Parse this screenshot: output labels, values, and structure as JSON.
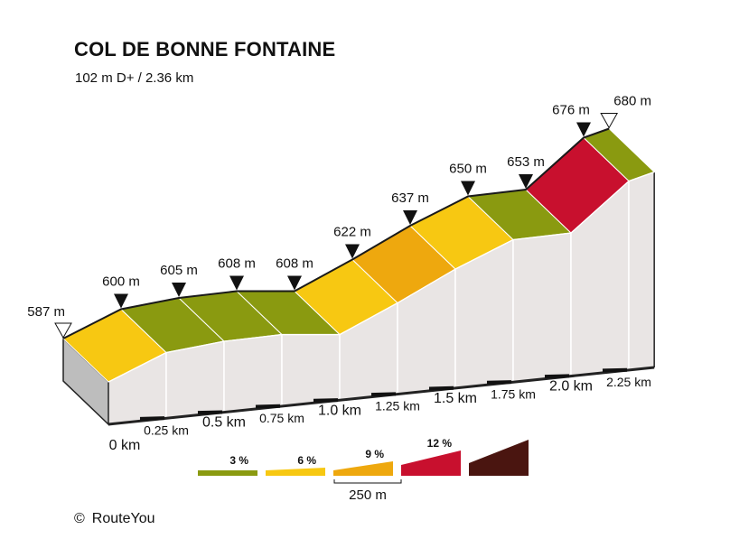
{
  "header": {
    "title": "COL DE BONNE FONTAINE",
    "subtitle": "102 m D+ / 2.36 km"
  },
  "footer": {
    "copyright_symbol": "©",
    "brand": "RouteYou"
  },
  "colors": {
    "grade_3": "#8a9a10",
    "grade_6": "#f7c812",
    "grade_9": "#eea80e",
    "grade_12": "#c8102e",
    "grade_max": "#4a1510",
    "side_fill": "#e9e5e4",
    "start_wall": "#bdbdbd",
    "baseline": "#222222"
  },
  "chart_data": {
    "type": "area",
    "title": "COL DE BONNE FONTAINE",
    "subtitle": "102 m D+ / 2.36 km",
    "xlabel": "",
    "ylabel": "",
    "x_unit": "km",
    "y_unit": "m",
    "points": [
      {
        "km": 0,
        "elevation": 587,
        "label": "587 m",
        "marker": "start"
      },
      {
        "km": 0.25,
        "elevation": 600,
        "label": "600 m",
        "marker": "point"
      },
      {
        "km": 0.5,
        "elevation": 605,
        "label": "605 m",
        "marker": "point"
      },
      {
        "km": 0.75,
        "elevation": 608,
        "label": "608 m",
        "marker": "point"
      },
      {
        "km": 1.0,
        "elevation": 608,
        "label": "608 m",
        "marker": "point"
      },
      {
        "km": 1.25,
        "elevation": 622,
        "label": "622 m",
        "marker": "point"
      },
      {
        "km": 1.5,
        "elevation": 637,
        "label": "637 m",
        "marker": "point"
      },
      {
        "km": 1.75,
        "elevation": 650,
        "label": "650 m",
        "marker": "point"
      },
      {
        "km": 2.0,
        "elevation": 653,
        "label": "653 m",
        "marker": "point"
      },
      {
        "km": 2.25,
        "elevation": 676,
        "label": "676 m",
        "marker": "point"
      },
      {
        "km": 2.36,
        "elevation": 680,
        "label": "680 m",
        "marker": "end"
      }
    ],
    "segments": [
      {
        "from_km": 0,
        "to_km": 0.25,
        "grade": 6
      },
      {
        "from_km": 0.25,
        "to_km": 0.5,
        "grade": 3
      },
      {
        "from_km": 0.5,
        "to_km": 0.75,
        "grade": 3
      },
      {
        "from_km": 0.75,
        "to_km": 1.0,
        "grade": 3
      },
      {
        "from_km": 1.0,
        "to_km": 1.25,
        "grade": 6
      },
      {
        "from_km": 1.25,
        "to_km": 1.5,
        "grade": 9
      },
      {
        "from_km": 1.5,
        "to_km": 1.75,
        "grade": 6
      },
      {
        "from_km": 1.75,
        "to_km": 2.0,
        "grade": 3
      },
      {
        "from_km": 2.0,
        "to_km": 2.25,
        "grade": 12
      },
      {
        "from_km": 2.25,
        "to_km": 2.36,
        "grade": 3
      }
    ],
    "x_ticks": [
      {
        "km": 0,
        "label": "0 km",
        "size": "large"
      },
      {
        "km": 0.25,
        "label": "0.25 km",
        "size": "small"
      },
      {
        "km": 0.5,
        "label": "0.5 km",
        "size": "large"
      },
      {
        "km": 0.75,
        "label": "0.75 km",
        "size": "small"
      },
      {
        "km": 1.0,
        "label": "1.0 km",
        "size": "large"
      },
      {
        "km": 1.25,
        "label": "1.25 km",
        "size": "small"
      },
      {
        "km": 1.5,
        "label": "1.5 km",
        "size": "large"
      },
      {
        "km": 1.75,
        "label": "1.75 km",
        "size": "small"
      },
      {
        "km": 2.0,
        "label": "2.0 km",
        "size": "large"
      },
      {
        "km": 2.25,
        "label": "2.25 km",
        "size": "small"
      }
    ],
    "legend": {
      "items": [
        {
          "label": "3 %",
          "color_key": "grade_3"
        },
        {
          "label": "6 %",
          "color_key": "grade_6"
        },
        {
          "label": "9 %",
          "color_key": "grade_9"
        },
        {
          "label": "12 %",
          "color_key": "grade_12"
        },
        {
          "label": "",
          "color_key": "grade_max"
        }
      ],
      "scale_label": "250 m"
    }
  }
}
